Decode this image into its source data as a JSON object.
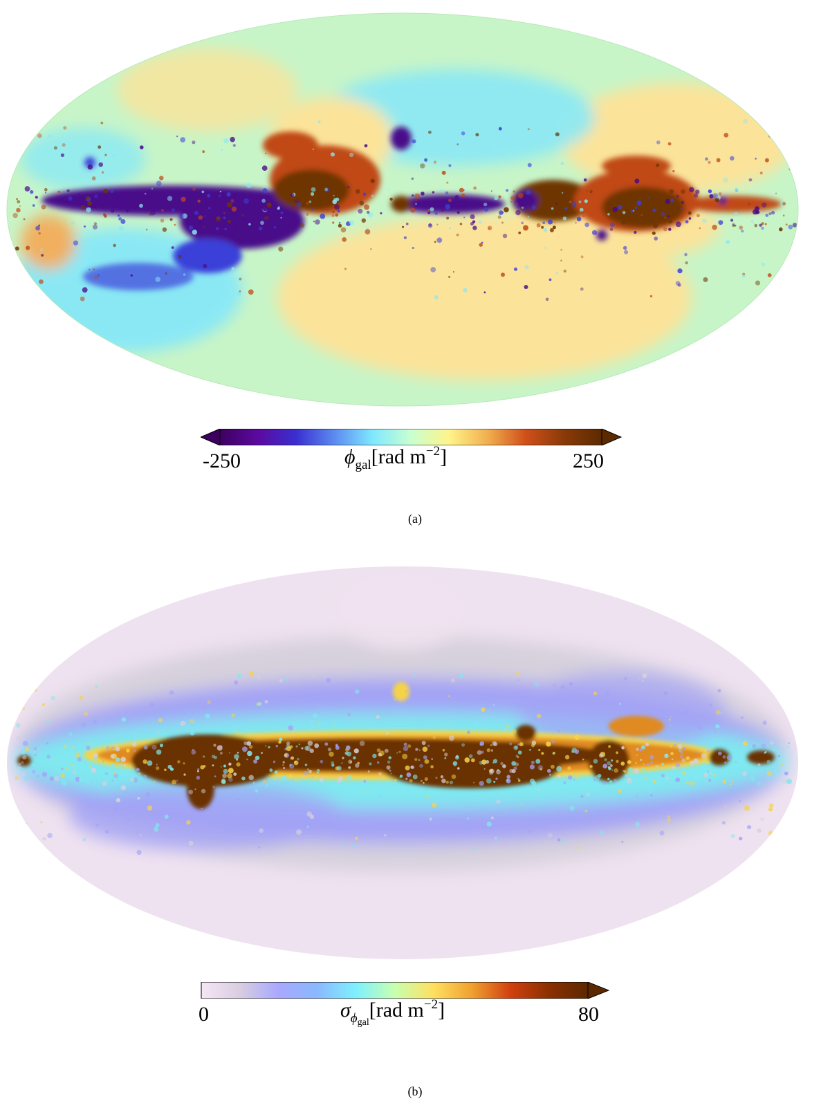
{
  "panels": [
    {
      "id": "a",
      "caption": "(a)",
      "colorbar": {
        "min_label": "-250",
        "max_label": "250",
        "symbol": "ϕ",
        "subscript": "gal",
        "unit_open": "[rad m",
        "unit_exp": "−2",
        "unit_close": "]",
        "extend": "both",
        "colors": [
          "#3d0060",
          "#5b0aa0",
          "#3a2fd0",
          "#5c8bf0",
          "#7fe8ff",
          "#c8ffd0",
          "#fff48a",
          "#f2b050",
          "#d0501a",
          "#8a3a08",
          "#5c2a00"
        ]
      },
      "map": {
        "projection": "Mollweide",
        "background_color": "#c8f5c8",
        "colors": {
          "deep_purple": "#4a0a8a",
          "blue": "#3b3fd8",
          "cyan": "#8ae8f5",
          "yellow": "#fbe39a",
          "orange": "#f0b060",
          "rust": "#c04a14",
          "brown": "#6e3500"
        }
      }
    },
    {
      "id": "b",
      "caption": "(b)",
      "colorbar": {
        "min_label": "0",
        "max_label": "80",
        "symbol": "σ",
        "subscript": "ϕ",
        "subsub": "gal",
        "unit_open": "[rad m",
        "unit_exp": "−2",
        "unit_close": "]",
        "extend": "max",
        "colors": [
          "#f5e6f5",
          "#d9cde0",
          "#a8a8ff",
          "#8ab8ff",
          "#7ff0ff",
          "#c8ffb0",
          "#ffe060",
          "#f0a030",
          "#d04010",
          "#8a3000",
          "#5c2800"
        ]
      },
      "map": {
        "projection": "Mollweide",
        "background_color": "#efe2f0",
        "colors": {
          "pale": "#efe2f0",
          "grey": "#d6d0dc",
          "lavender": "#a3a3f5",
          "cyan": "#7fe8f0",
          "yellow": "#f5d34a",
          "orange": "#e08a20",
          "brown": "#6b3000"
        }
      }
    }
  ]
}
